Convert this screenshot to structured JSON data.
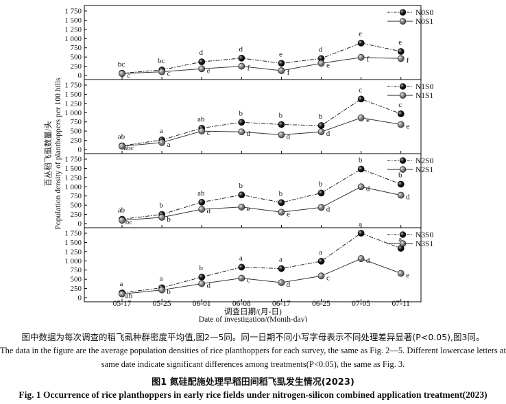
{
  "chart_data": {
    "type": "line",
    "ylabel_zh": "百丛稻飞虱数量/头",
    "ylabel_en": "Population density of planthoppers per 100 hills",
    "xlabel_zh": "调查日期/(月-日)",
    "xlabel_en": "Date of investigation/(Month-day)",
    "categories": [
      "05-17",
      "05-25",
      "06-01",
      "06-08",
      "06-17",
      "06-25",
      "07-05",
      "07-11"
    ],
    "ylim": [
      0,
      1750
    ],
    "yticks": [
      "0",
      "250",
      "500",
      "750",
      "1 000",
      "1 250",
      "1 500",
      "1 750"
    ],
    "grid": false,
    "legend_position": "top-right",
    "panels": [
      {
        "series": [
          {
            "name": "N0S0",
            "style": "dashdot",
            "marker": "black",
            "values": [
              60,
              150,
              370,
              470,
              330,
              460,
              880,
              650
            ],
            "labels": [
              "bc",
              "bc",
              "d",
              "d",
              "e",
              "d",
              "e",
              "e"
            ]
          },
          {
            "name": "N0S1",
            "style": "solid",
            "marker": "grey",
            "values": [
              50,
              100,
              180,
              250,
              130,
              330,
              490,
              460
            ],
            "labels": [
              "c",
              "c",
              "e",
              "f",
              "f",
              "e",
              "f",
              "f"
            ]
          }
        ]
      },
      {
        "series": [
          {
            "name": "N1S0",
            "style": "dashdot",
            "marker": "black",
            "values": [
              100,
              260,
              580,
              740,
              680,
              650,
              1370,
              970
            ],
            "labels": [
              "ab",
              "a",
              "ab",
              "b",
              "b",
              "b",
              "c",
              "c"
            ]
          },
          {
            "name": "N1S1",
            "style": "solid",
            "marker": "grey",
            "values": [
              90,
              190,
              500,
              480,
              400,
              480,
              860,
              680
            ],
            "labels": [
              "abc",
              "a",
              "c",
              "d",
              "d",
              "d",
              "e",
              "e"
            ]
          }
        ]
      },
      {
        "series": [
          {
            "name": "N2S0",
            "style": "dashdot",
            "marker": "black",
            "values": [
              120,
              250,
              580,
              780,
              570,
              830,
              1480,
              1070
            ],
            "labels": [
              "ab",
              "b",
              "ab",
              "b",
              "b",
              "b",
              "b",
              "b"
            ]
          },
          {
            "name": "N2S1",
            "style": "solid",
            "marker": "grey",
            "values": [
              90,
              170,
              390,
              450,
              310,
              440,
              1000,
              770
            ],
            "labels": [
              "bc",
              "b",
              "d",
              "e",
              "e",
              "d",
              "d",
              "d"
            ]
          }
        ]
      },
      {
        "series": [
          {
            "name": "N3S0",
            "style": "dashdot",
            "marker": "black",
            "values": [
              130,
              270,
              560,
              830,
              790,
              990,
              1750,
              1340
            ],
            "labels": [
              "a",
              "a",
              "b",
              "a",
              "a",
              "a",
              "a",
              "a"
            ]
          },
          {
            "name": "N3S1",
            "style": "solid",
            "marker": "grey",
            "values": [
              100,
              210,
              380,
              530,
              410,
              590,
              1060,
              660
            ],
            "labels": [
              "ab",
              "b",
              "d",
              "c",
              "d",
              "c",
              "d",
              "e"
            ]
          }
        ]
      }
    ]
  },
  "captions": {
    "note_zh": "图中数据为每次调查的稻飞虱种群密度平均值,图2—5同。同一日期不同小写字母表示不同处理差异显著(P<0.05),图3同。",
    "note_en_1": "The data in the figure are the average population densities of rice planthoppers for each survey, the same as Fig. 2—5. Different lowercase letters at the",
    "note_en_2": "same date indicate significant differences among treatments(P<0.05), the same as Fig. 3.",
    "title_zh": "图1   氮硅配施处理早稻田间稻飞虱发生情况(2023)",
    "title_en": "Fig. 1   Occurrence of rice planthoppers in early rice fields under nitrogen-silicon combined application treatment(2023)"
  }
}
